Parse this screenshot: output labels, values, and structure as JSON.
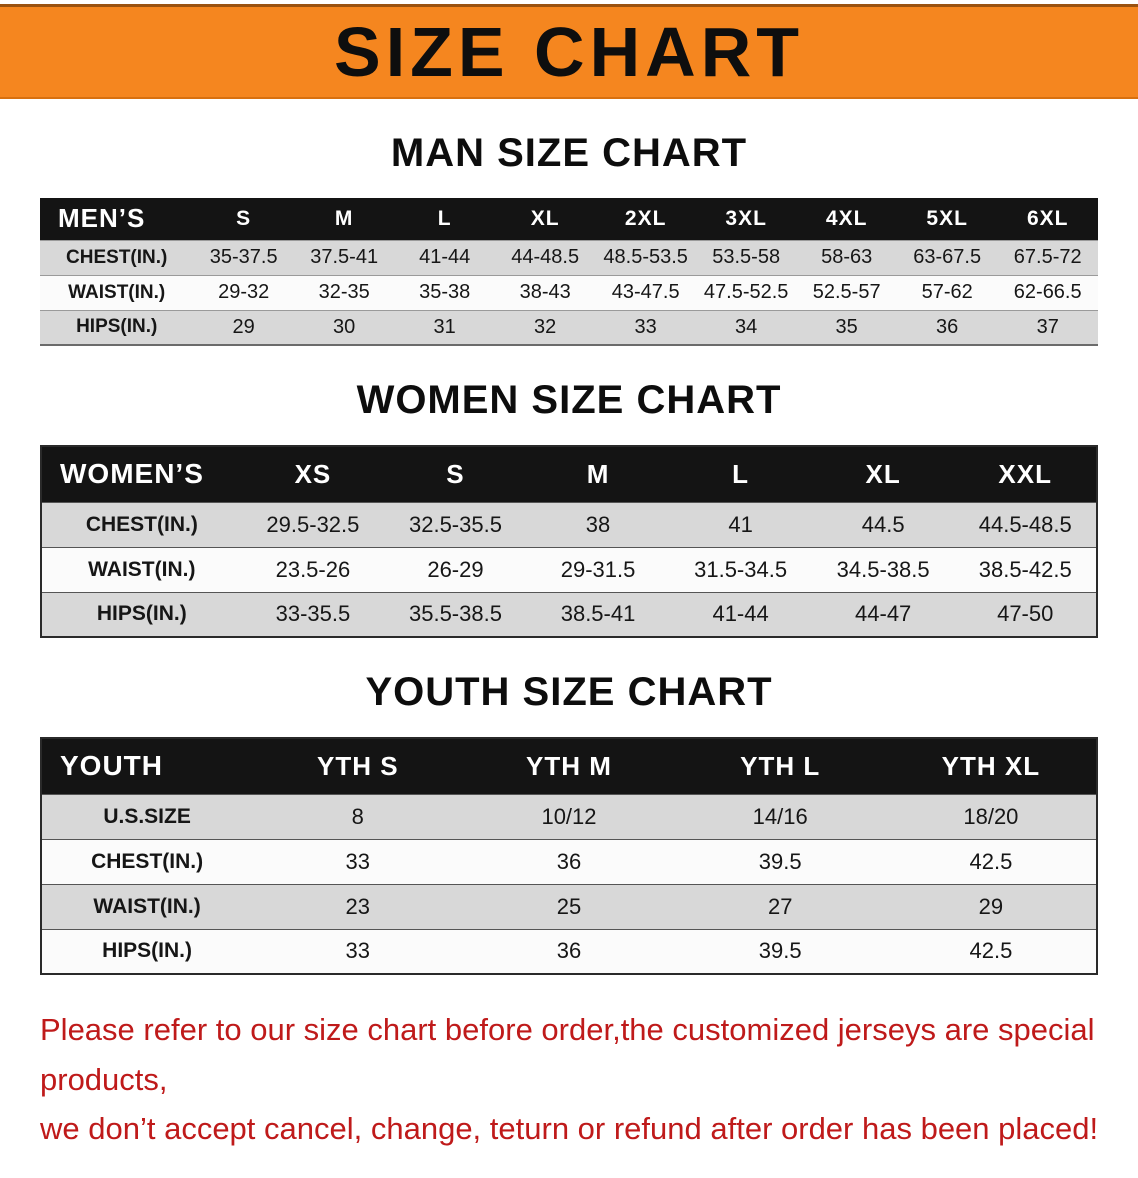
{
  "banner": {
    "title": "SIZE CHART"
  },
  "colors": {
    "banner": "#f5861f",
    "header_bg": "#141414",
    "row_gray": "#d8d8d8",
    "footer_red": "#bf1a1a"
  },
  "men": {
    "heading": "MAN SIZE CHART",
    "header": [
      "MEN’S",
      "S",
      "M",
      "L",
      "XL",
      "2XL",
      "3XL",
      "4XL",
      "5XL",
      "6XL"
    ],
    "rows": [
      [
        "CHEST(IN.)",
        "35-37.5",
        "37.5-41",
        "41-44",
        "44-48.5",
        "48.5-53.5",
        "53.5-58",
        "58-63",
        "63-67.5",
        "67.5-72"
      ],
      [
        "WAIST(IN.)",
        "29-32",
        "32-35",
        "35-38",
        "38-43",
        "43-47.5",
        "47.5-52.5",
        "52.5-57",
        "57-62",
        "62-66.5"
      ],
      [
        "HIPS(IN.)",
        "29",
        "30",
        "31",
        "32",
        "33",
        "34",
        "35",
        "36",
        "37"
      ]
    ]
  },
  "women": {
    "heading": "WOMEN SIZE CHART",
    "header": [
      "WOMEN’S",
      "XS",
      "S",
      "M",
      "L",
      "XL",
      "XXL"
    ],
    "rows": [
      [
        "CHEST(IN.)",
        "29.5-32.5",
        "32.5-35.5",
        "38",
        "41",
        "44.5",
        "44.5-48.5"
      ],
      [
        "WAIST(IN.)",
        "23.5-26",
        "26-29",
        "29-31.5",
        "31.5-34.5",
        "34.5-38.5",
        "38.5-42.5"
      ],
      [
        "HIPS(IN.)",
        "33-35.5",
        "35.5-38.5",
        "38.5-41",
        "41-44",
        "44-47",
        "47-50"
      ]
    ]
  },
  "youth": {
    "heading": "YOUTH SIZE CHART",
    "header": [
      "YOUTH",
      "YTH S",
      "YTH M",
      "YTH L",
      "YTH XL"
    ],
    "rows": [
      [
        "U.S.SIZE",
        "8",
        "10/12",
        "14/16",
        "18/20"
      ],
      [
        "CHEST(IN.)",
        "33",
        "36",
        "39.5",
        "42.5"
      ],
      [
        "WAIST(IN.)",
        "23",
        "25",
        "27",
        "29"
      ],
      [
        "HIPS(IN.)",
        "33",
        "36",
        "39.5",
        "42.5"
      ]
    ]
  },
  "footer": {
    "line1": "Please refer to our size chart before order,the customized jerseys are special products,",
    "line2": "we don’t accept cancel, change, teturn or refund after order has been placed!"
  }
}
